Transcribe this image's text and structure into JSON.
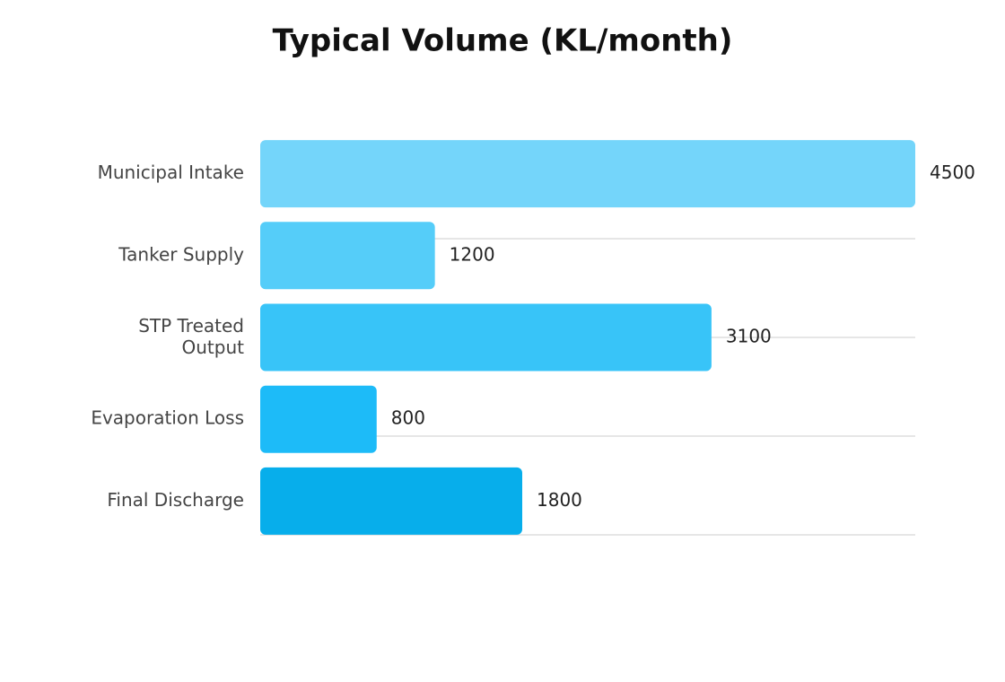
{
  "chart_data": {
    "type": "hbar",
    "title": "Typical Volume (KL/month)",
    "categories": [
      "Municipal Intake",
      "Tanker Supply",
      "STP Treated\nOutput",
      "Evaporation Loss",
      "Final Discharge"
    ],
    "values": [
      4500,
      1200,
      3100,
      800,
      1800
    ],
    "colors": [
      "#74d5fa",
      "#55cdf9",
      "#38c4f8",
      "#1dbbf8",
      "#07aeeb"
    ],
    "xlim": [
      0,
      4500
    ]
  }
}
